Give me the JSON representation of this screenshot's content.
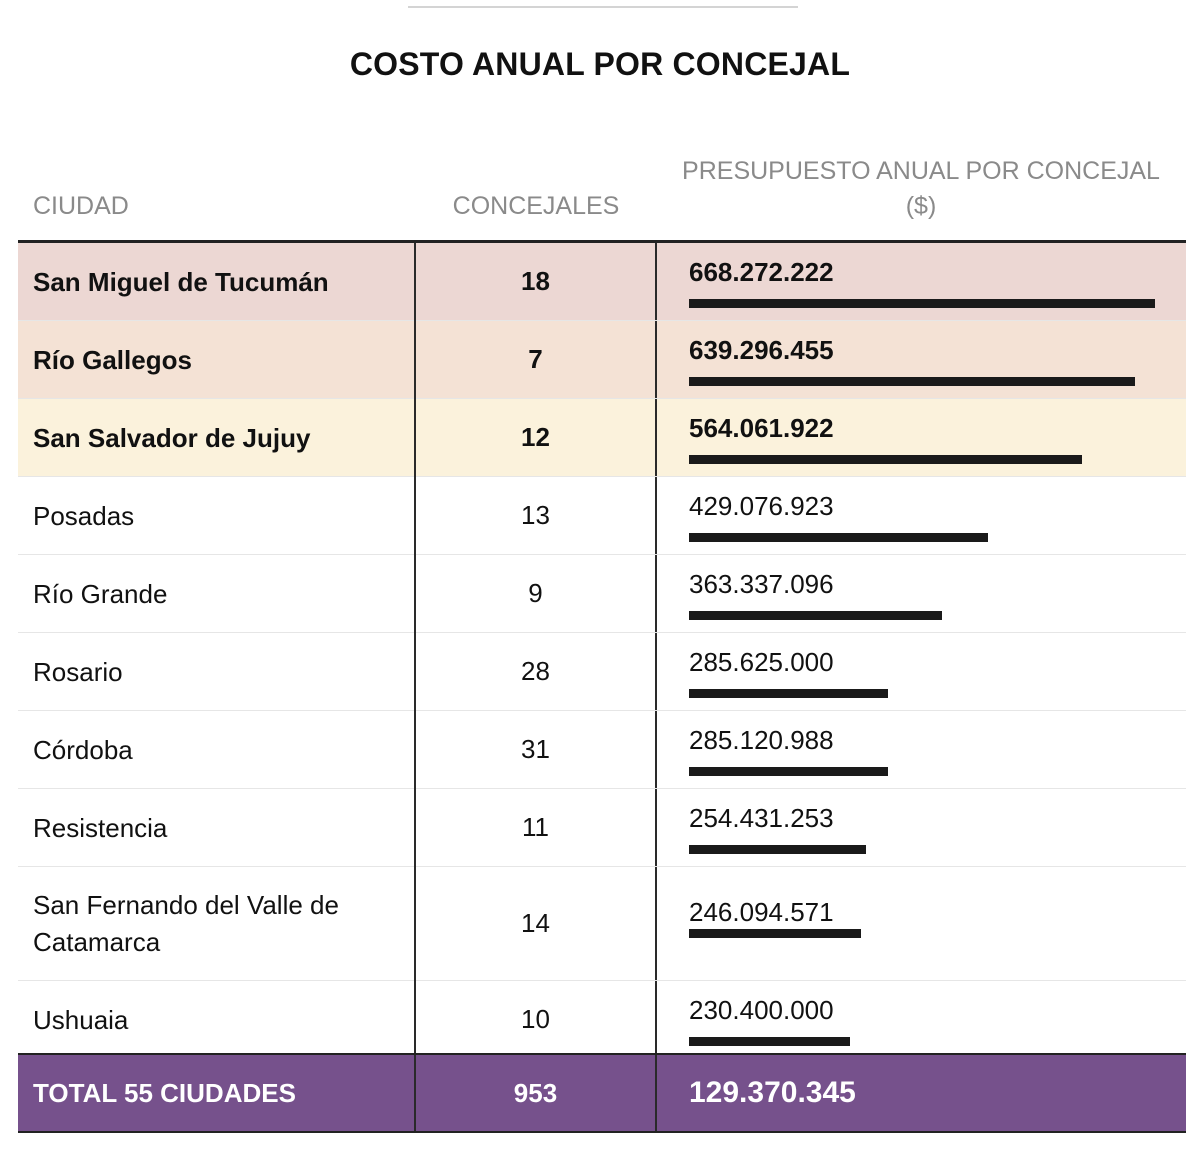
{
  "title": "COSTO ANUAL POR CONCEJAL",
  "headers": {
    "city": "CIUDAD",
    "councillors": "CONCEJALES",
    "budget_line1": "PRESUPUESTO ANUAL POR CONCEJAL",
    "budget_line2": "($)"
  },
  "chart_data": {
    "type": "table",
    "title": "COSTO ANUAL POR CONCEJAL",
    "columns": [
      "CIUDAD",
      "CONCEJALES",
      "PRESUPUESTO ANUAL POR CONCEJAL ($)"
    ],
    "max_value": 668272222,
    "rows": [
      {
        "city": "San Miguel de Tucumán",
        "councillors": "18",
        "budget": "668.272.222",
        "value": 668272222,
        "highlight": "#ecd7d3",
        "bold": true
      },
      {
        "city": "Río Gallegos",
        "councillors": "7",
        "budget": "639.296.455",
        "value": 639296455,
        "highlight": "#f4e2d5",
        "bold": true
      },
      {
        "city": "San Salvador de Jujuy",
        "councillors": "12",
        "budget": "564.061.922",
        "value": 564061922,
        "highlight": "#fbf2dc",
        "bold": true
      },
      {
        "city": "Posadas",
        "councillors": "13",
        "budget": "429.076.923",
        "value": 429076923,
        "highlight": "",
        "bold": false
      },
      {
        "city": "Río Grande",
        "councillors": "9",
        "budget": "363.337.096",
        "value": 363337096,
        "highlight": "",
        "bold": false
      },
      {
        "city": "Rosario",
        "councillors": "28",
        "budget": "285.625.000",
        "value": 285625000,
        "highlight": "",
        "bold": false
      },
      {
        "city": "Córdoba",
        "councillors": "31",
        "budget": "285.120.988",
        "value": 285120988,
        "highlight": "",
        "bold": false
      },
      {
        "city": "Resistencia",
        "councillors": "11",
        "budget": "254.431.253",
        "value": 254431253,
        "highlight": "",
        "bold": false
      },
      {
        "city": "San Fernando del Valle de Catamarca",
        "councillors": "14",
        "budget": "246.094.571",
        "value": 246094571,
        "highlight": "",
        "bold": false
      },
      {
        "city": "Ushuaia",
        "councillors": "10",
        "budget": "230.400.000",
        "value": 230400000,
        "highlight": "",
        "bold": false
      }
    ],
    "total": {
      "city": "TOTAL 55 CIUDADES",
      "councillors": "953",
      "budget": "129.370.345",
      "color": "#76518c"
    }
  }
}
